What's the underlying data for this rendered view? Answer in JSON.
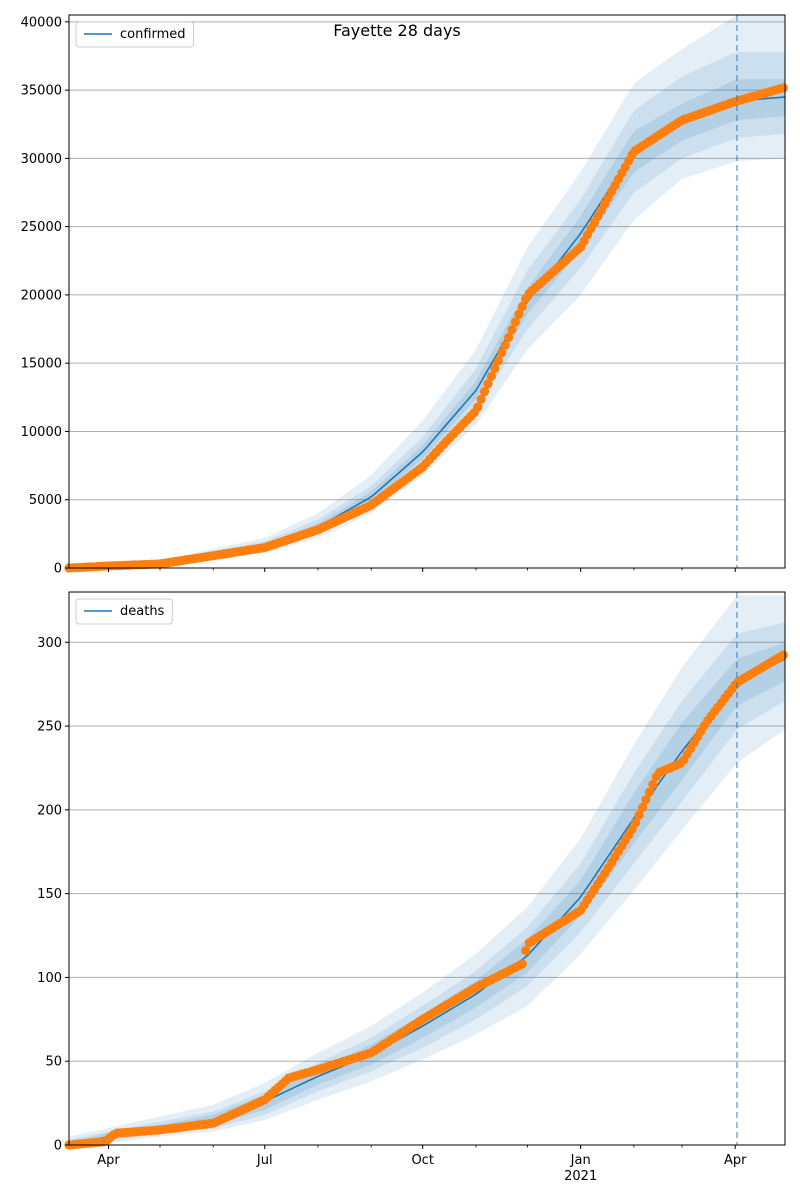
{
  "figure": {
    "title": "Fayette 28 days"
  },
  "colors": {
    "model_line": "#1f77b4",
    "observed_points": "#ff7f0e",
    "band": "#1f77b4",
    "forecast_line": "#1f77b4",
    "grid": "#b0b0b0"
  },
  "x_axis": {
    "date_range": [
      "2020-03-09",
      "2021-04-30"
    ],
    "forecast_start": "2021-04-02",
    "tick_labels": [
      {
        "date": "2020-04-01",
        "label": "Apr",
        "sublabel": ""
      },
      {
        "date": "2020-07-01",
        "label": "Jul",
        "sublabel": ""
      },
      {
        "date": "2020-10-01",
        "label": "Oct",
        "sublabel": ""
      },
      {
        "date": "2021-01-01",
        "label": "Jan",
        "sublabel": "2021"
      },
      {
        "date": "2021-04-01",
        "label": "Apr",
        "sublabel": ""
      }
    ]
  },
  "chart_data": [
    {
      "type": "line",
      "legend": "confirmed",
      "legend_position": "top-left",
      "grid": "horizontal",
      "ylim": [
        0,
        40500
      ],
      "yticks": [
        0,
        5000,
        10000,
        15000,
        20000,
        25000,
        30000,
        35000,
        40000
      ],
      "ytick_labels": [
        "0",
        "5000",
        "10000",
        "15000",
        "20000",
        "25000",
        "30000",
        "35000",
        "40000"
      ],
      "model": {
        "dates": [
          "2020-03-09",
          "2020-04-01",
          "2020-05-01",
          "2020-06-01",
          "2020-07-01",
          "2020-08-01",
          "2020-09-01",
          "2020-10-01",
          "2020-11-01",
          "2020-12-01",
          "2021-01-01",
          "2021-02-01",
          "2021-03-01",
          "2021-04-02",
          "2021-04-30"
        ],
        "values": [
          0,
          100,
          400,
          1000,
          1600,
          3000,
          5200,
          8500,
          13000,
          19500,
          24500,
          30500,
          32500,
          34200,
          34500
        ],
        "bands": [
          {
            "lower": [
              0,
              60,
              250,
              700,
              1100,
              2200,
              4000,
              6800,
              10500,
              16000,
              20000,
              25500,
              28500,
              29800,
              30000
            ],
            "upper": [
              0,
              150,
              600,
              1400,
              2200,
              4000,
              6800,
              10800,
              16000,
              23500,
              29000,
              35500,
              38000,
              40500,
              40500
            ]
          },
          {
            "lower": [
              0,
              75,
              320,
              820,
              1300,
              2550,
              4500,
              7500,
              11600,
              17500,
              22000,
              27500,
              30000,
              31500,
              31800
            ],
            "upper": [
              0,
              130,
              520,
              1250,
              1950,
              3550,
              6000,
              9600,
              14600,
              21800,
              27000,
              33500,
              36000,
              37800,
              37800
            ]
          },
          {
            "lower": [
              0,
              88,
              360,
              920,
              1450,
              2800,
              4850,
              8000,
              12400,
              18600,
              23300,
              29000,
              31300,
              32800,
              33100
            ],
            "upper": [
              0,
              115,
              450,
              1120,
              1780,
              3250,
              5600,
              9000,
              13700,
              20500,
              25800,
              32000,
              34000,
              35800,
              35800
            ]
          }
        ]
      },
      "observed": {
        "dates": [
          "2020-03-09",
          "2020-04-01",
          "2020-05-01",
          "2020-06-01",
          "2020-07-01",
          "2020-08-01",
          "2020-09-01",
          "2020-10-01",
          "2020-10-15",
          "2020-11-01",
          "2020-12-01",
          "2021-01-01",
          "2021-02-01",
          "2021-03-01",
          "2021-04-02",
          "2021-04-30"
        ],
        "values": [
          0,
          150,
          300,
          900,
          1500,
          2800,
          4600,
          7400,
          9300,
          11500,
          20000,
          23500,
          30500,
          32800,
          34200,
          35200
        ]
      }
    },
    {
      "type": "line",
      "legend": "deaths",
      "legend_position": "top-left",
      "grid": "horizontal",
      "ylim": [
        0,
        330
      ],
      "yticks": [
        0,
        50,
        100,
        150,
        200,
        250,
        300
      ],
      "ytick_labels": [
        "0",
        "50",
        "100",
        "150",
        "200",
        "250",
        "300"
      ],
      "model": {
        "dates": [
          "2020-03-09",
          "2020-04-01",
          "2020-05-01",
          "2020-06-01",
          "2020-07-01",
          "2020-08-01",
          "2020-09-01",
          "2020-10-01",
          "2020-11-01",
          "2020-12-01",
          "2021-01-01",
          "2021-02-01",
          "2021-03-01",
          "2021-04-02",
          "2021-04-30"
        ],
        "values": [
          0,
          5,
          10,
          15,
          26,
          41,
          54,
          71,
          90,
          113,
          148,
          195,
          235,
          276,
          290
        ],
        "bands": [
          {
            "lower": [
              0,
              1,
              5,
              8,
              15,
              27,
              38,
              51,
              66,
              83,
              114,
              152,
              188,
              228,
              248
            ],
            "upper": [
              5,
              10,
              17,
              24,
              37,
              55,
              71,
              91,
              114,
              142,
              183,
              239,
              285,
              328,
              328
            ]
          },
          {
            "lower": [
              0,
              2,
              7,
              10,
              18,
              32,
              44,
              58,
              75,
              95,
              127,
              168,
              205,
              248,
              265
            ],
            "upper": [
              3,
              8,
              14,
              20,
              32,
              49,
              64,
              83,
              104,
              130,
              168,
              222,
              265,
              305,
              312
            ]
          },
          {
            "lower": [
              0,
              3,
              8,
              12,
              21,
              36,
              48,
              64,
              82,
              103,
              137,
              180,
              218,
              262,
              277
            ],
            "upper": [
              2,
              7,
              12,
              18,
              30,
              45,
              60,
              78,
              98,
              123,
              158,
              210,
              252,
              290,
              300
            ]
          }
        ]
      },
      "observed": {
        "dates": [
          "2020-03-09",
          "2020-03-30",
          "2020-04-05",
          "2020-05-01",
          "2020-06-01",
          "2020-07-01",
          "2020-07-15",
          "2020-08-01",
          "2020-09-01",
          "2020-10-01",
          "2020-11-01",
          "2020-11-28",
          "2020-12-01",
          "2021-01-01",
          "2021-01-15",
          "2021-02-01",
          "2021-02-15",
          "2021-03-01",
          "2021-03-15",
          "2021-04-02",
          "2021-04-30"
        ],
        "values": [
          0,
          2,
          7,
          9,
          13,
          27,
          40,
          45,
          55,
          75,
          94,
          108,
          120,
          140,
          162,
          190,
          222,
          228,
          252,
          276,
          293
        ]
      }
    }
  ]
}
